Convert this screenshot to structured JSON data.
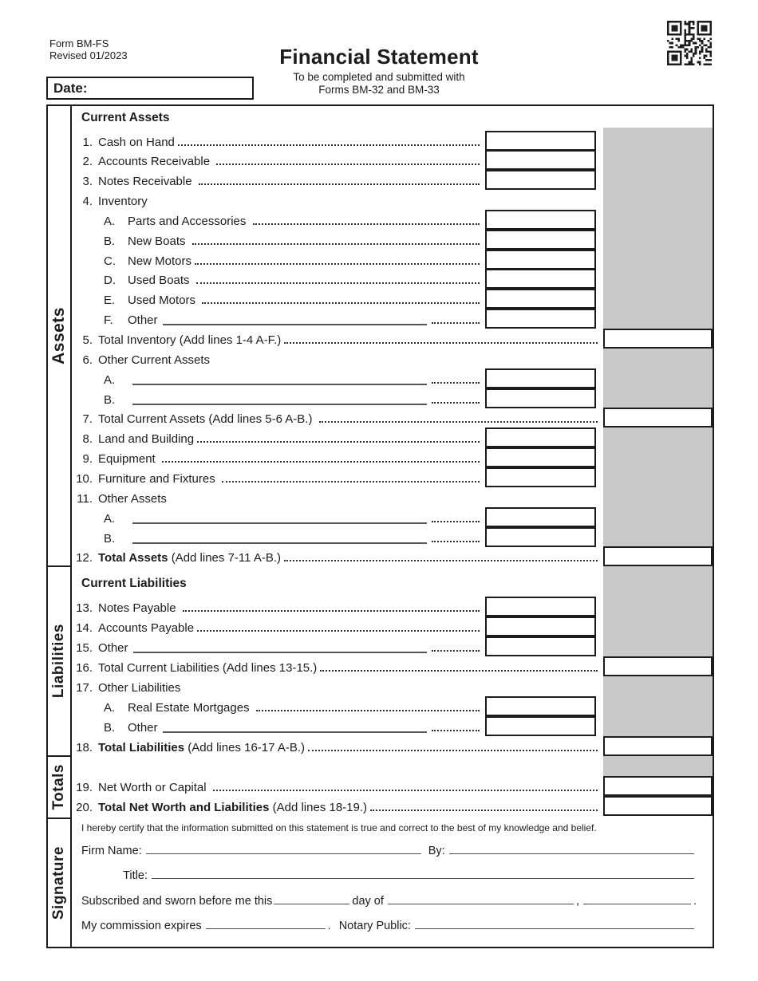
{
  "header": {
    "form_number": "Form BM-FS",
    "revision": "Revised 01/2023",
    "title": "Financial Statement",
    "subtitle_line1": "To be completed and submitted with",
    "subtitle_line2": "Forms BM-32 and BM-33",
    "date_label": "Date:",
    "qr_icon": "qr-code"
  },
  "colors": {
    "shaded_column": "#c9c9c9",
    "border": "#1c1c1c"
  },
  "sections": {
    "assets": {
      "side_label": "Assets",
      "heading": "Current Assets",
      "rows": [
        {
          "num": "1.",
          "label": "Cash on Hand",
          "box": "item"
        },
        {
          "num": "2.",
          "label": "Accounts Receivable ",
          "box": "item"
        },
        {
          "num": "3.",
          "label": "Notes Receivable ",
          "box": "item"
        },
        {
          "num": "4.",
          "label": "Inventory",
          "box": "none"
        },
        {
          "num": "A.",
          "label": "Parts and Accessories ",
          "box": "item",
          "indent": 1
        },
        {
          "num": "B.",
          "label": "New Boats ",
          "box": "item",
          "indent": 1
        },
        {
          "num": "C.",
          "label": "New Motors",
          "box": "item",
          "indent": 1
        },
        {
          "num": "D.",
          "label": "Used Boats ",
          "box": "item",
          "indent": 1
        },
        {
          "num": "E.",
          "label": "Used Motors ",
          "box": "item",
          "indent": 1
        },
        {
          "num": "F.",
          "label": "Other",
          "box": "item",
          "indent": 1,
          "blank": true
        },
        {
          "num": "5.",
          "label": "Total Inventory (Add lines 1-4 A-F.)",
          "box": "total"
        },
        {
          "num": "6.",
          "label": "Other Current Assets",
          "box": "none"
        },
        {
          "num": "A.",
          "label": "",
          "box": "item",
          "indent": 1,
          "blank": true
        },
        {
          "num": "B.",
          "label": "",
          "box": "item",
          "indent": 1,
          "blank": true
        },
        {
          "num": "7.",
          "label": "Total Current Assets (Add lines 5-6 A-B.) ",
          "box": "total"
        },
        {
          "num": "8.",
          "label": "Land and Building",
          "box": "item"
        },
        {
          "num": "9.",
          "label": "Equipment ",
          "box": "item"
        },
        {
          "num": "10.",
          "label": "Furniture and Fixtures ",
          "box": "item"
        },
        {
          "num": "11.",
          "label": "Other Assets",
          "box": "none"
        },
        {
          "num": "A.",
          "label": "",
          "box": "item",
          "indent": 1,
          "blank": true
        },
        {
          "num": "B.",
          "label": "",
          "box": "item",
          "indent": 1,
          "blank": true
        },
        {
          "num": "12.",
          "label": "Total Assets",
          "suffix": " (Add lines 7-11 A-B.)",
          "bold": true,
          "box": "total"
        }
      ]
    },
    "liabilities": {
      "side_label": "Liabilities",
      "heading": "Current Liabilities",
      "rows": [
        {
          "num": "13.",
          "label": "Notes Payable ",
          "box": "item"
        },
        {
          "num": "14.",
          "label": "Accounts Payable",
          "box": "item"
        },
        {
          "num": "15.",
          "label": "Other",
          "box": "item",
          "blank": true
        },
        {
          "num": "16.",
          "label": "Total Current Liabilities (Add lines 13-15.)",
          "box": "total"
        },
        {
          "num": "17.",
          "label": "Other Liabilities",
          "box": "none"
        },
        {
          "num": "A.",
          "label": "Real Estate Mortgages ",
          "box": "item",
          "indent": 1
        },
        {
          "num": "B.",
          "label": "Other",
          "box": "item",
          "indent": 1,
          "blank": true
        },
        {
          "num": "18.",
          "label": "Total Liabilities",
          "suffix": " (Add lines 16-17 A-B.)",
          "bold": true,
          "box": "total"
        }
      ]
    },
    "totals": {
      "side_label": "Totals",
      "rows": [
        {
          "num": "19.",
          "label": "Net Worth or Capital ",
          "box": "total"
        },
        {
          "num": "20.",
          "label": "Total Net Worth and Liabilities",
          "suffix": " (Add lines 18-19.)",
          "bold": true,
          "box": "total"
        }
      ]
    },
    "signature": {
      "side_label": "Signature",
      "certification": "I hereby certify that the information submitted on this statement is true and correct to the best of my knowledge and belief.",
      "firm_name_label": "Firm Name:",
      "by_label": "By:",
      "title_label": "Title:",
      "sworn_prefix": "Subscribed and sworn before me this",
      "day_of_label": "day of",
      "comma": ",",
      "end_period": ".",
      "commission_label": "My commission expires",
      "commission_period": ".",
      "notary_label": "Notary Public:"
    }
  }
}
